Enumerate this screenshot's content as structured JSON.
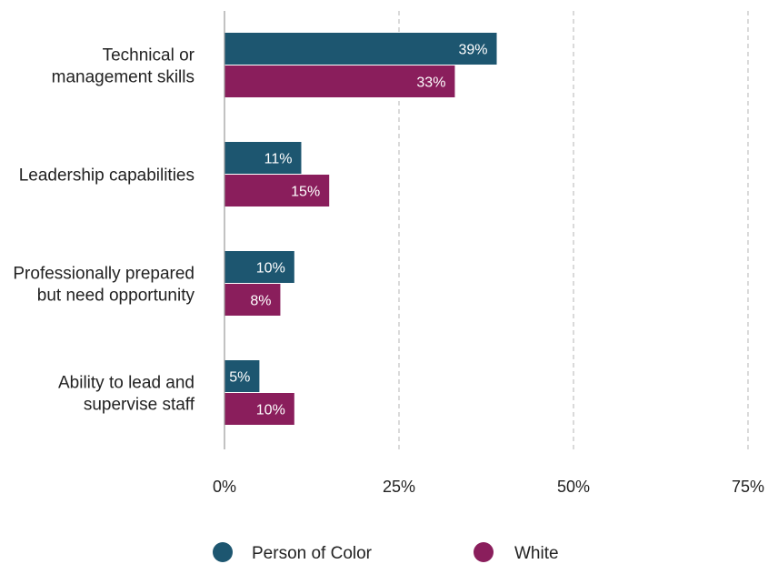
{
  "chart_data": {
    "type": "bar",
    "orientation": "horizontal",
    "categories": [
      [
        "Technical or",
        "management skills"
      ],
      [
        "Leadership capabilities"
      ],
      [
        "Professionally prepared",
        "but need opportunity"
      ],
      [
        "Ability to lead and",
        "supervise staff"
      ]
    ],
    "series": [
      {
        "name": "Person of Color",
        "color": "#1d5670",
        "values": [
          39,
          11,
          10,
          5
        ],
        "labels": [
          "39%",
          "11%",
          "10%",
          "5%"
        ]
      },
      {
        "name": "White",
        "color": "#8a1e5c",
        "values": [
          33,
          15,
          8,
          10
        ],
        "labels": [
          "33%",
          "15%",
          "8%",
          "10%"
        ]
      }
    ],
    "xlim": [
      0,
      75
    ],
    "xticks": [
      0,
      25,
      50,
      75
    ],
    "xtick_labels": [
      "0%",
      "25%",
      "50%",
      "75%"
    ],
    "grid": "vertical-dashed",
    "legend_position": "bottom"
  }
}
